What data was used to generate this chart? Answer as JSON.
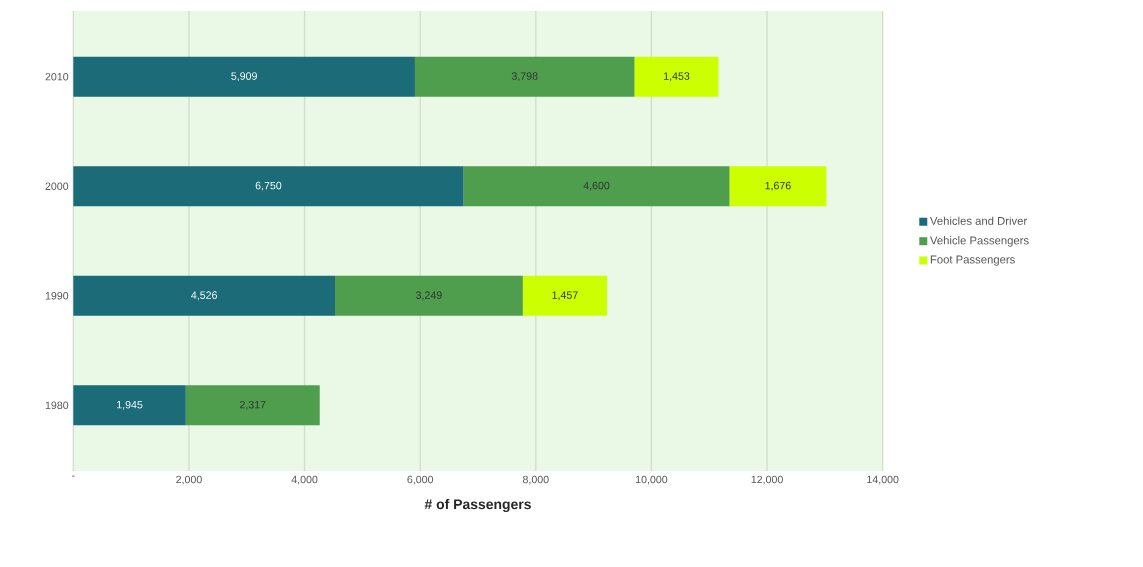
{
  "chart_data": {
    "type": "bar",
    "orientation": "horizontal",
    "stacked": true,
    "categories": [
      "2010",
      "2000",
      "1990",
      "1980"
    ],
    "series": [
      {
        "name": "Vehicles and Driver",
        "color": "#1b6b78",
        "values": [
          5909,
          6750,
          4526,
          1945
        ],
        "value_labels": [
          "5,909",
          "6,750",
          "4,526",
          "1,945"
        ]
      },
      {
        "name": "Vehicle Passengers",
        "color": "#4e9e4e",
        "values": [
          3798,
          4600,
          3249,
          2317
        ],
        "value_labels": [
          "3,798",
          "4,600",
          "3,249",
          "2,317"
        ]
      },
      {
        "name": "Foot Passengers",
        "color": "#ccff00",
        "values": [
          1453,
          1676,
          1457,
          null
        ],
        "value_labels": [
          "1,453",
          "1,676",
          "1,457",
          null
        ]
      }
    ],
    "xlabel": "# of Passengers",
    "xlim": [
      0,
      14000
    ],
    "xticks": [
      {
        "value": 0,
        "label": "-"
      },
      {
        "value": 2000,
        "label": "2,000"
      },
      {
        "value": 4000,
        "label": "4,000"
      },
      {
        "value": 6000,
        "label": "6,000"
      },
      {
        "value": 8000,
        "label": "8,000"
      },
      {
        "value": 10000,
        "label": "10,000"
      },
      {
        "value": 12000,
        "label": "12,000"
      },
      {
        "value": 14000,
        "label": "14,000"
      }
    ],
    "grid": "x",
    "legend": "right"
  }
}
